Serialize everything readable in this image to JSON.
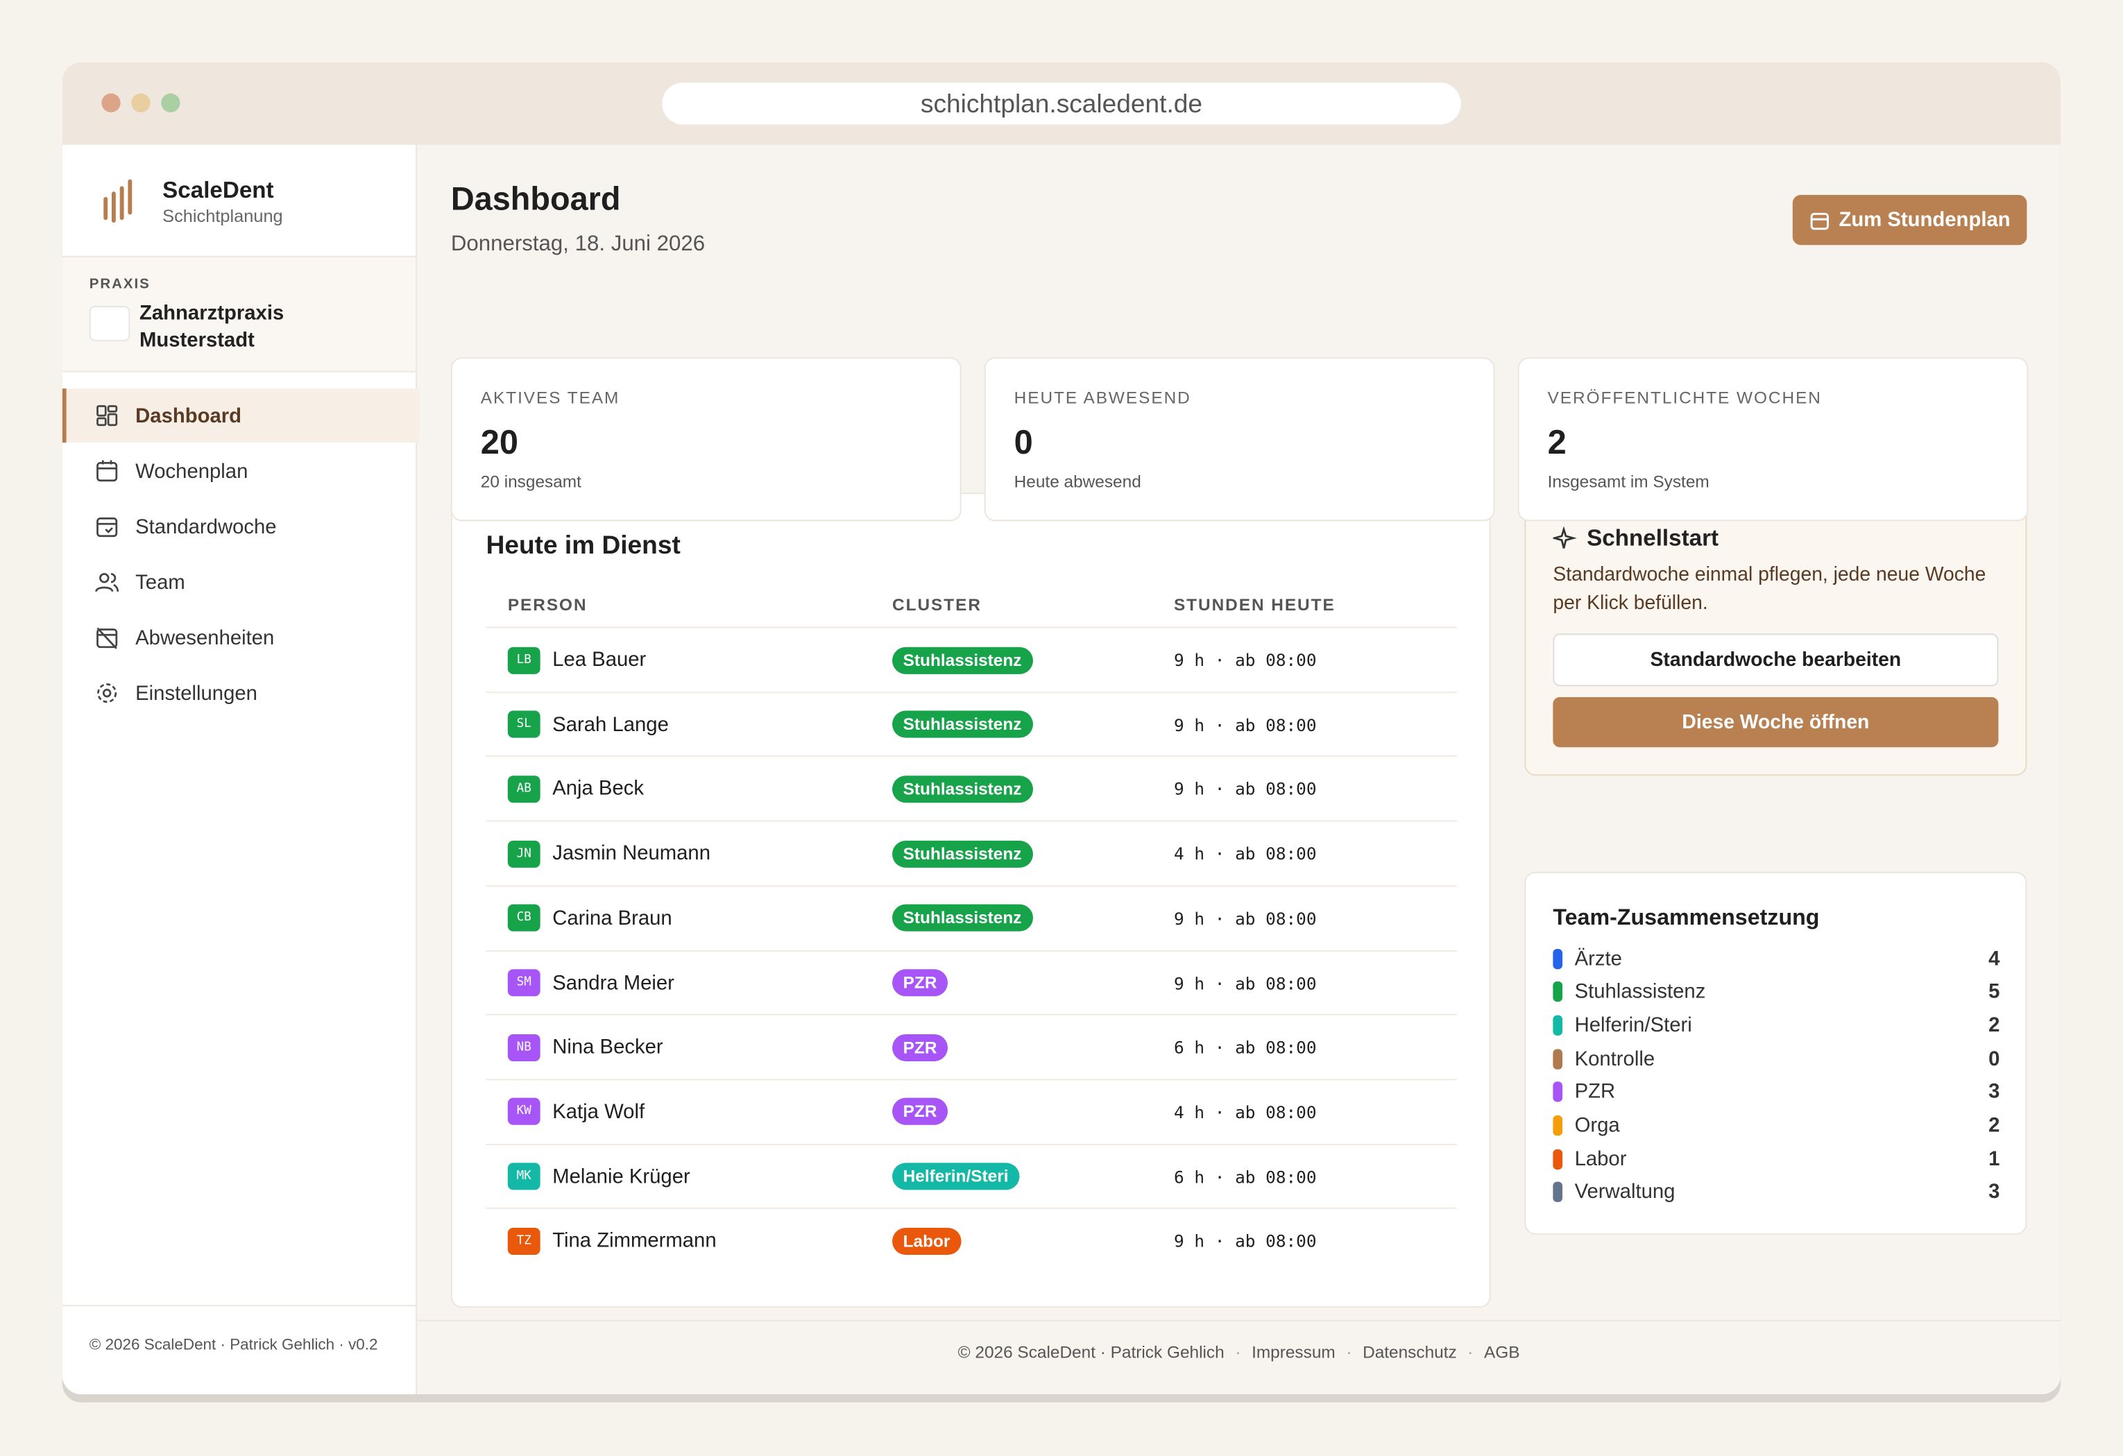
{
  "browser": {
    "url": "schichtplan.scaledent.de"
  },
  "sidebar": {
    "brand": "ScaleDent",
    "brand_sub": "Schichtplanung",
    "praxis_label": "PRAXIS",
    "praxis_name": "Zahnarztpraxis Musterstadt",
    "nav": [
      "Dashboard",
      "Wochenplan",
      "Standardwoche",
      "Team",
      "Abwesenheiten",
      "Einstellungen"
    ],
    "footer": "© 2026 ScaleDent · Patrick Gehlich · v0.2"
  },
  "header": {
    "title": "Dashboard",
    "date": "Donnerstag, 18. Juni 2026",
    "button": "Zum Stundenplan"
  },
  "stats": [
    {
      "label": "AKTIVES TEAM",
      "value": "20",
      "sub": "20 insgesamt"
    },
    {
      "label": "HEUTE ABWESEND",
      "value": "0",
      "sub": "Heute abwesend"
    },
    {
      "label": "VERÖFFENTLICHTE WOCHEN",
      "value": "2",
      "sub": "Insgesamt im System"
    }
  ],
  "table": {
    "title": "Heute im Dienst",
    "columns": [
      "PERSON",
      "CLUSTER",
      "STUNDEN HEUTE"
    ],
    "rows": [
      {
        "initials": "LB",
        "name": "Lea Bauer",
        "cluster": "Stuhlassistenz",
        "hours": "9 h · ab 08:00",
        "color": "#16a34a"
      },
      {
        "initials": "SL",
        "name": "Sarah Lange",
        "cluster": "Stuhlassistenz",
        "hours": "9 h · ab 08:00",
        "color": "#16a34a"
      },
      {
        "initials": "AB",
        "name": "Anja Beck",
        "cluster": "Stuhlassistenz",
        "hours": "9 h · ab 08:00",
        "color": "#16a34a"
      },
      {
        "initials": "JN",
        "name": "Jasmin Neumann",
        "cluster": "Stuhlassistenz",
        "hours": "4 h · ab 08:00",
        "color": "#16a34a"
      },
      {
        "initials": "CB",
        "name": "Carina Braun",
        "cluster": "Stuhlassistenz",
        "hours": "9 h · ab 08:00",
        "color": "#16a34a"
      },
      {
        "initials": "SM",
        "name": "Sandra Meier",
        "cluster": "PZR",
        "hours": "9 h · ab 08:00",
        "color": "#a855f7"
      },
      {
        "initials": "NB",
        "name": "Nina Becker",
        "cluster": "PZR",
        "hours": "6 h · ab 08:00",
        "color": "#a855f7"
      },
      {
        "initials": "KW",
        "name": "Katja Wolf",
        "cluster": "PZR",
        "hours": "4 h · ab 08:00",
        "color": "#a855f7"
      },
      {
        "initials": "MK",
        "name": "Melanie Krüger",
        "cluster": "Helferin/Steri",
        "hours": "6 h · ab 08:00",
        "color": "#14b8a6"
      },
      {
        "initials": "TZ",
        "name": "Tina Zimmermann",
        "cluster": "Labor",
        "hours": "9 h · ab 08:00",
        "color": "#ea580c"
      }
    ]
  },
  "quickstart": {
    "title": "Schnellstart",
    "text": "Standardwoche einmal pflegen, jede neue Woche per Klick befüllen.",
    "button_secondary": "Standardwoche bearbeiten",
    "button_primary": "Diese Woche öffnen"
  },
  "composition": {
    "title": "Team-Zusammensetzung",
    "items": [
      {
        "name": "Ärzte",
        "count": 4,
        "color": "#2563eb"
      },
      {
        "name": "Stuhlassistenz",
        "count": 5,
        "color": "#16a34a"
      },
      {
        "name": "Helferin/Steri",
        "count": 2,
        "color": "#14b8a6"
      },
      {
        "name": "Kontrolle",
        "count": 0,
        "color": "#b07a4f"
      },
      {
        "name": "PZR",
        "count": 3,
        "color": "#a855f7"
      },
      {
        "name": "Orga",
        "count": 2,
        "color": "#f59e0b"
      },
      {
        "name": "Labor",
        "count": 1,
        "color": "#ea580c"
      },
      {
        "name": "Verwaltung",
        "count": 3,
        "color": "#64748b"
      }
    ]
  },
  "footer": [
    "© 2026 ScaleDent · Patrick Gehlich",
    "Impressum",
    "Datenschutz",
    "AGB"
  ]
}
